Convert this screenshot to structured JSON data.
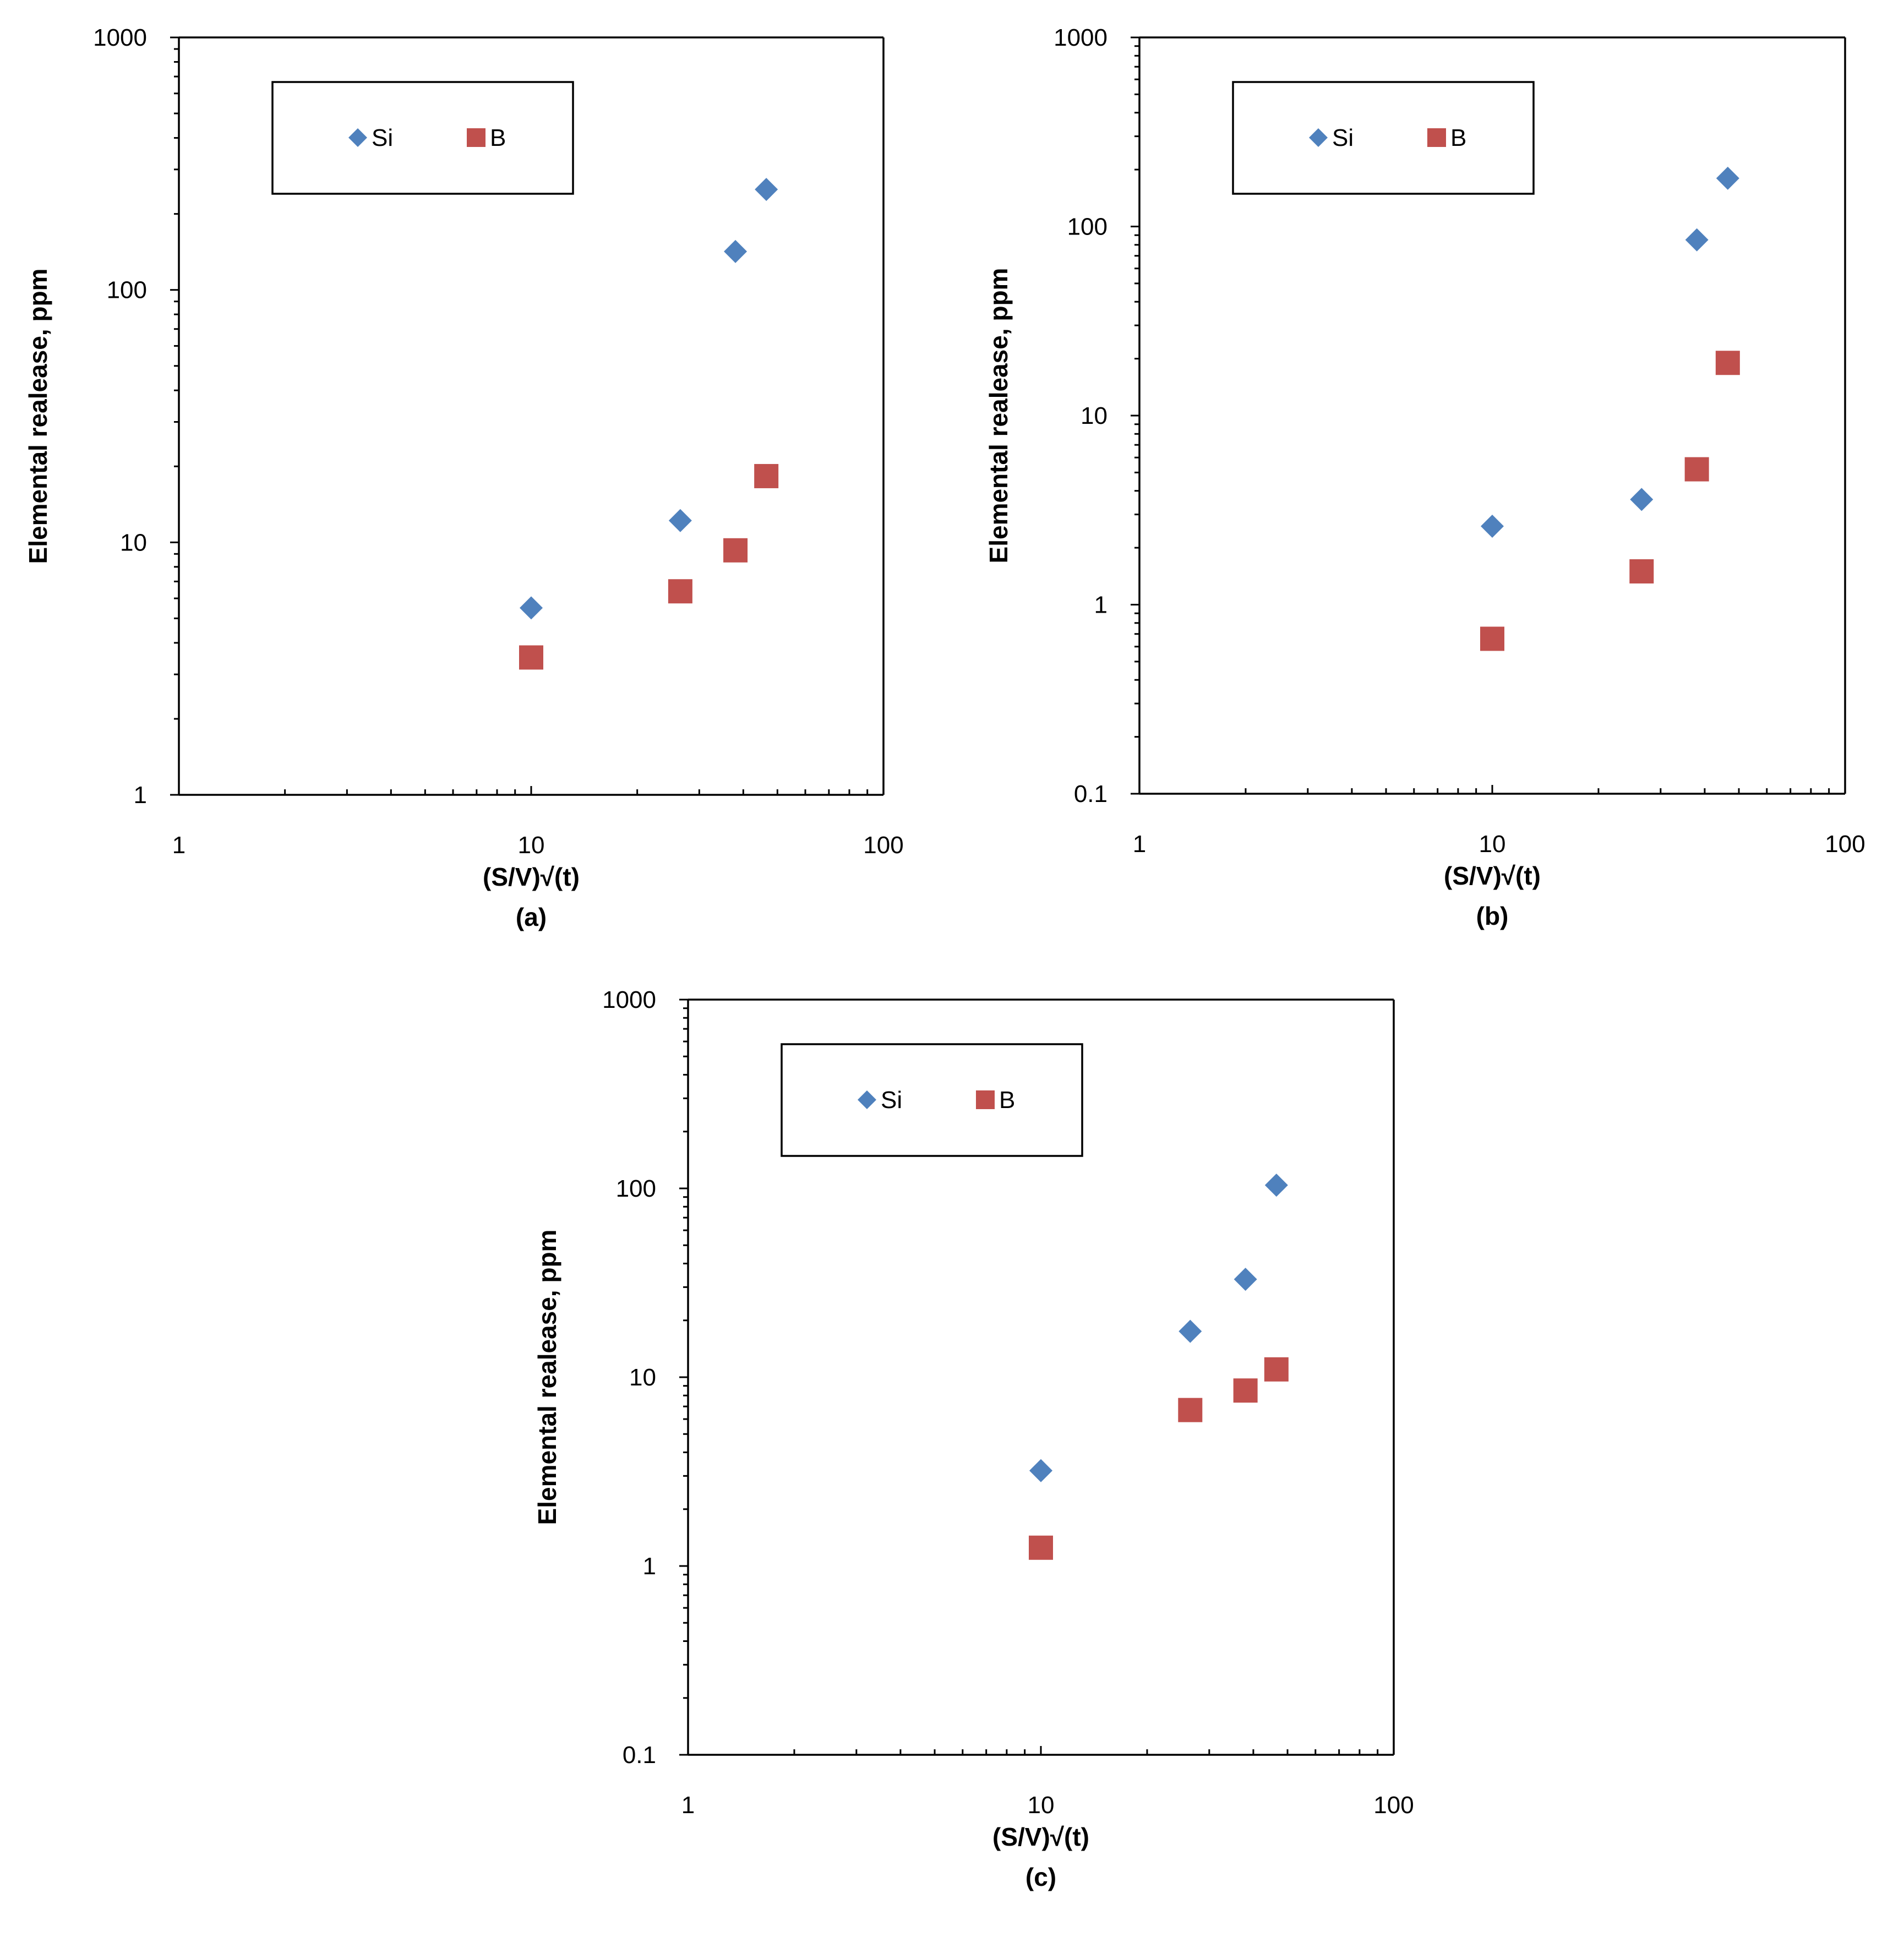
{
  "figure": {
    "colors": {
      "Si": "#4F81BD",
      "B": "#C0504D"
    }
  },
  "chart_data": [
    {
      "type": "scatter",
      "panel": "(a)",
      "xscale": "log",
      "yscale": "log",
      "xlim": [
        1,
        100
      ],
      "ylim": [
        1,
        1000
      ],
      "xticks": [
        "1",
        "10",
        "100"
      ],
      "yticks": [
        "1",
        "10",
        "100",
        "1000"
      ],
      "xlabel": "(S/V)√(t)",
      "ylabel": "Elemental realease, ppm",
      "legend": {
        "placement": "top-left",
        "entries": [
          "Si",
          "B"
        ]
      },
      "series": [
        {
          "name": "Si",
          "marker": "diamond",
          "x": [
            10,
            26.5,
            38,
            46.5
          ],
          "y": [
            5.5,
            12.2,
            142,
            250
          ]
        },
        {
          "name": "B",
          "marker": "square",
          "x": [
            10,
            26.5,
            38,
            46.5
          ],
          "y": [
            3.5,
            6.4,
            9.3,
            18.3
          ]
        }
      ]
    },
    {
      "type": "scatter",
      "panel": "(b)",
      "xscale": "log",
      "yscale": "log",
      "xlim": [
        1,
        100
      ],
      "ylim": [
        0.1,
        1000
      ],
      "xticks": [
        "1",
        "10",
        "100"
      ],
      "yticks": [
        "0.1",
        "1",
        "10",
        "100",
        "1000"
      ],
      "xlabel": "(S/V)√(t)",
      "ylabel": "Elemental realease, ppm",
      "legend": {
        "placement": "top-left",
        "entries": [
          "Si",
          "B"
        ]
      },
      "series": [
        {
          "name": "Si",
          "marker": "diamond",
          "x": [
            10,
            26.5,
            38,
            46.5
          ],
          "y": [
            2.6,
            3.6,
            85,
            180
          ]
        },
        {
          "name": "B",
          "marker": "square",
          "x": [
            10,
            26.5,
            38,
            46.5
          ],
          "y": [
            0.66,
            1.5,
            5.2,
            19
          ]
        }
      ]
    },
    {
      "type": "scatter",
      "panel": "(c)",
      "xscale": "log",
      "yscale": "log",
      "xlim": [
        1,
        100
      ],
      "ylim": [
        0.1,
        1000
      ],
      "xticks": [
        "1",
        "10",
        "100"
      ],
      "yticks": [
        "0.1",
        "1",
        "10",
        "100",
        "1000"
      ],
      "xlabel": "(S/V)√(t)",
      "ylabel": "Elemental realease, ppm",
      "legend": {
        "placement": "top-left",
        "entries": [
          "Si",
          "B"
        ]
      },
      "series": [
        {
          "name": "Si",
          "marker": "diamond",
          "x": [
            10,
            26.5,
            38,
            46.5
          ],
          "y": [
            3.2,
            17.5,
            33,
            104
          ]
        },
        {
          "name": "B",
          "marker": "square",
          "x": [
            10,
            26.5,
            38,
            46.5
          ],
          "y": [
            1.25,
            6.7,
            8.5,
            11
          ]
        }
      ]
    }
  ]
}
